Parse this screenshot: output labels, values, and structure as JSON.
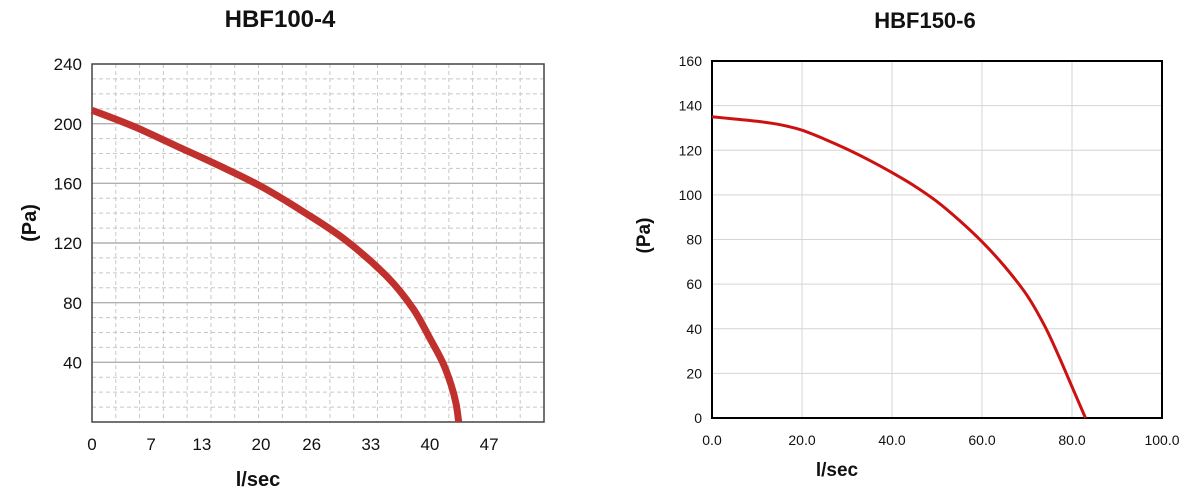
{
  "chart_data": [
    {
      "type": "line",
      "title": "HBF100-4",
      "xlabel": "l/sec",
      "ylabel": "(Pa)",
      "xlim": [
        0,
        53.5
      ],
      "ylim": [
        0,
        240
      ],
      "xticks": [
        0,
        7,
        13,
        20,
        26,
        33,
        40,
        47
      ],
      "xticklabels": [
        "0",
        "7",
        "13",
        "20",
        "26",
        "33",
        "40",
        "47"
      ],
      "yticks": [
        40,
        80,
        120,
        160,
        200,
        240
      ],
      "yticklabels": [
        "40",
        "80",
        "120",
        "160",
        "200",
        "240"
      ],
      "grid": "dashed-minor",
      "colors": {
        "line": "#c0302c",
        "grid": "#c8c8c8",
        "axes": "#444444"
      },
      "series": [
        {
          "x": [
            0,
            5,
            10,
            15,
            20,
            25,
            30,
            35,
            38,
            40,
            41.5,
            42.5,
            43.1,
            43.4
          ],
          "y": [
            209,
            198,
            185,
            172,
            158,
            141,
            122,
            97,
            76,
            56,
            40,
            25,
            12,
            0
          ]
        }
      ]
    },
    {
      "type": "line",
      "title": "HBF150-6",
      "xlabel": "l/sec",
      "ylabel": "(Pa)",
      "xlim": [
        0,
        100
      ],
      "ylim": [
        0,
        160
      ],
      "xticks": [
        0,
        20,
        40,
        60,
        80,
        100
      ],
      "xticklabels": [
        "0.0",
        "20.0",
        "40.0",
        "60.0",
        "80.0",
        "100.0"
      ],
      "yticks": [
        0,
        20,
        40,
        60,
        80,
        100,
        120,
        140,
        160
      ],
      "yticklabels": [
        "0",
        "20",
        "40",
        "60",
        "80",
        "100",
        "120",
        "140",
        "160"
      ],
      "grid": "solid-major",
      "colors": {
        "line": "#cc1111",
        "grid": "#d4d4d4",
        "axes": "#000000"
      },
      "series": [
        {
          "x": [
            0,
            5,
            10,
            15,
            20,
            25,
            30,
            35,
            40,
            45,
            50,
            55,
            60,
            65,
            70,
            74,
            77,
            80,
            83
          ],
          "y": [
            135,
            134,
            133,
            131.5,
            129,
            125,
            120.5,
            115.5,
            110,
            104,
            97,
            88.5,
            79,
            68,
            55,
            41,
            28,
            14,
            0
          ]
        }
      ]
    }
  ]
}
